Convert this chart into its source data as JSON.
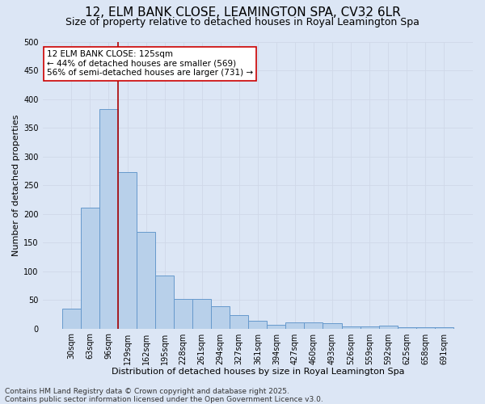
{
  "title": "12, ELM BANK CLOSE, LEAMINGTON SPA, CV32 6LR",
  "subtitle": "Size of property relative to detached houses in Royal Leamington Spa",
  "xlabel": "Distribution of detached houses by size in Royal Leamington Spa",
  "ylabel": "Number of detached properties",
  "categories": [
    "30sqm",
    "63sqm",
    "96sqm",
    "129sqm",
    "162sqm",
    "195sqm",
    "228sqm",
    "261sqm",
    "294sqm",
    "327sqm",
    "361sqm",
    "394sqm",
    "427sqm",
    "460sqm",
    "493sqm",
    "526sqm",
    "559sqm",
    "592sqm",
    "625sqm",
    "658sqm",
    "691sqm"
  ],
  "values": [
    35,
    210,
    382,
    272,
    168,
    93,
    52,
    52,
    39,
    24,
    13,
    7,
    11,
    11,
    9,
    4,
    4,
    5,
    2,
    2,
    2
  ],
  "bar_color": "#b8d0ea",
  "bar_edge_color": "#6699cc",
  "vline_x_index": 2,
  "vline_color": "#aa0000",
  "annotation_text": "12 ELM BANK CLOSE: 125sqm\n← 44% of detached houses are smaller (569)\n56% of semi-detached houses are larger (731) →",
  "annotation_box_color": "#ffffff",
  "annotation_box_edge": "#cc0000",
  "ylim": [
    0,
    500
  ],
  "yticks": [
    0,
    50,
    100,
    150,
    200,
    250,
    300,
    350,
    400,
    450,
    500
  ],
  "grid_color": "#d0d8e8",
  "background_color": "#dce6f5",
  "footer": "Contains HM Land Registry data © Crown copyright and database right 2025.\nContains public sector information licensed under the Open Government Licence v3.0.",
  "title_fontsize": 11,
  "subtitle_fontsize": 9,
  "label_fontsize": 8,
  "tick_fontsize": 7,
  "footer_fontsize": 6.5,
  "ann_fontsize": 7.5
}
